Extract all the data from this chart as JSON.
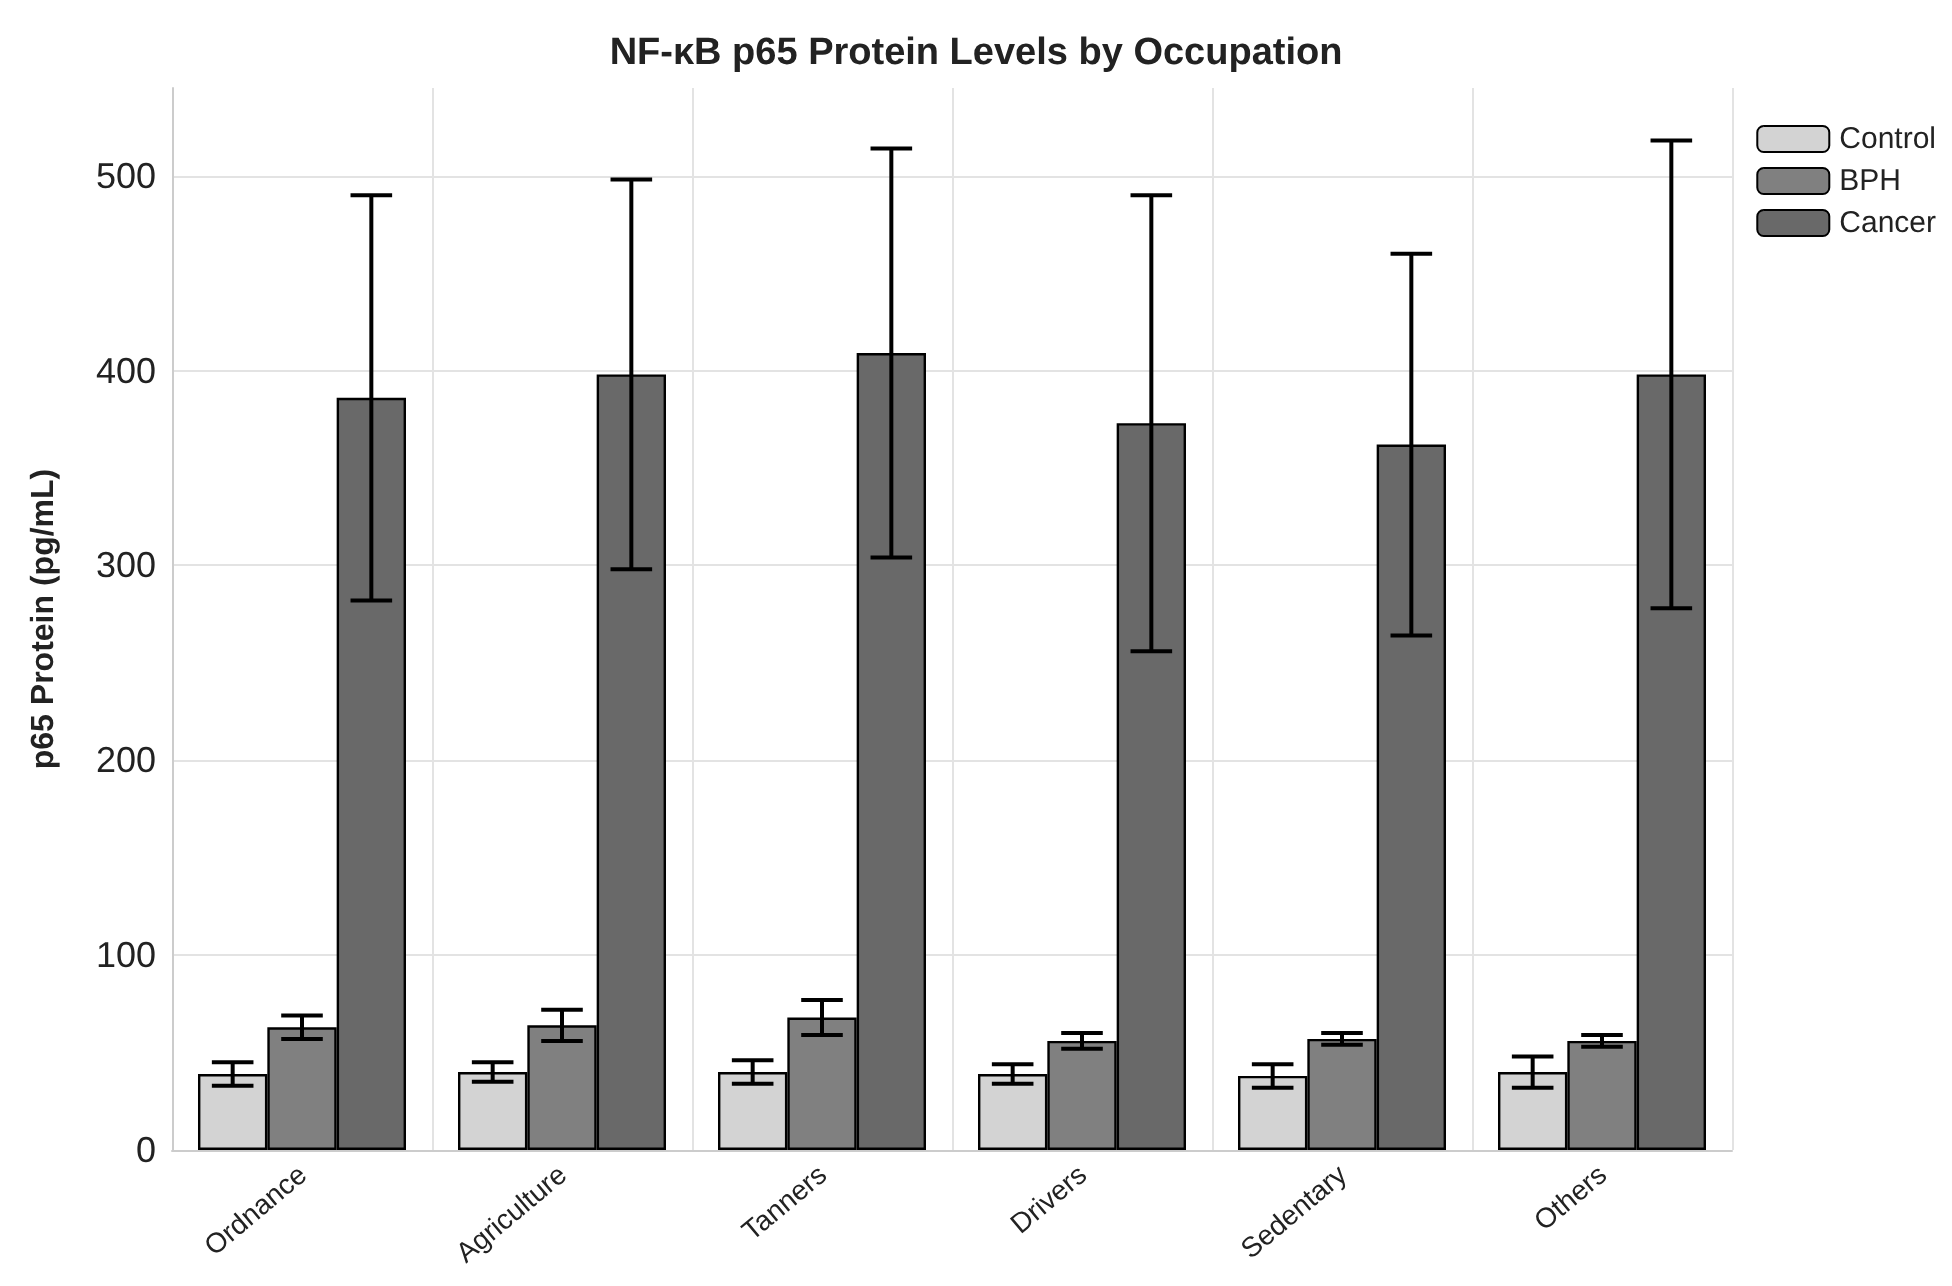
{
  "chart_data": {
    "type": "bar",
    "title": "NF-κB p65 Protein Levels by Occupation",
    "ylabel": "p65 Protein (pg/mL)",
    "categories": [
      "Ordnance",
      "Agriculture",
      "Tanners",
      "Drivers",
      "Sedentary",
      "Others"
    ],
    "series": [
      {
        "name": "Control",
        "color": "#d3d3d3",
        "values": [
          39,
          40,
          40,
          39,
          38,
          40
        ],
        "errors": [
          6,
          5,
          6,
          5,
          6,
          8
        ]
      },
      {
        "name": "BPH",
        "color": "#808080",
        "values": [
          63,
          64,
          68,
          56,
          57,
          56
        ],
        "errors": [
          6,
          8,
          9,
          4,
          3,
          3
        ]
      },
      {
        "name": "Cancer",
        "color": "#696969",
        "values": [
          386,
          398,
          409,
          373,
          362,
          398
        ],
        "errors": [
          104,
          100,
          105,
          117,
          98,
          120
        ]
      }
    ],
    "ylim": [
      0,
      545
    ],
    "yticks": [
      0,
      100,
      200,
      300,
      400,
      500
    ],
    "grid": true,
    "legend": "top right"
  }
}
